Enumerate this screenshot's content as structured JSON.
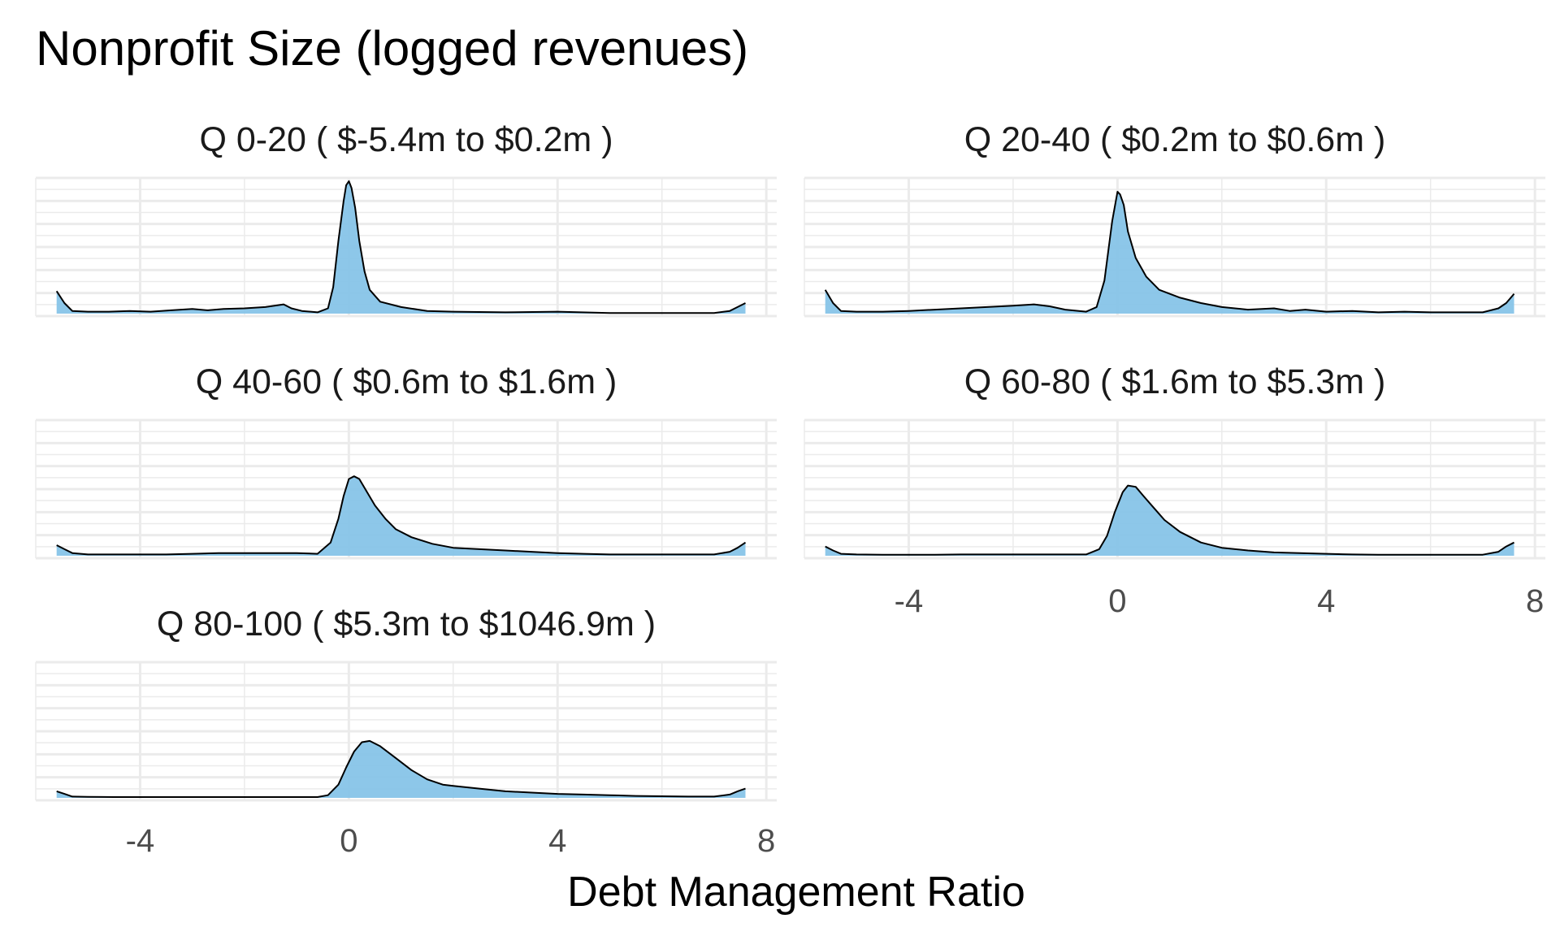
{
  "chart_data": {
    "type": "area",
    "title": "Nonprofit Size (logged revenues)",
    "xlabel": "Debt Management Ratio",
    "ylabel": "",
    "xlim": [
      -5.6,
      7.6
    ],
    "x_ticks": [
      -4,
      0,
      4,
      8
    ],
    "x_tick_labels": [
      "-4",
      "0",
      "4",
      "8"
    ],
    "grid": true,
    "fill_color": "#87c4e8",
    "line_color": "#000000",
    "grid_color": "#ebebeb",
    "panels": [
      {
        "label": "Q 0-20   ( $-5.4m to $0.2m )",
        "x": [
          -5.6,
          -5.45,
          -5.3,
          -5.0,
          -4.6,
          -4.2,
          -3.8,
          -3.4,
          -3.0,
          -2.7,
          -2.4,
          -2.0,
          -1.6,
          -1.25,
          -1.1,
          -0.9,
          -0.6,
          -0.4,
          -0.3,
          -0.2,
          -0.1,
          -0.05,
          0.0,
          0.05,
          0.12,
          0.2,
          0.3,
          0.4,
          0.6,
          1.0,
          1.5,
          2.0,
          3.0,
          4.0,
          5.0,
          6.0,
          7.0,
          7.3,
          7.45,
          7.6
        ],
        "y": [
          0.17,
          0.08,
          0.02,
          0.015,
          0.015,
          0.02,
          0.015,
          0.025,
          0.035,
          0.025,
          0.035,
          0.04,
          0.05,
          0.07,
          0.04,
          0.02,
          0.01,
          0.04,
          0.2,
          0.55,
          0.85,
          0.97,
          1.0,
          0.95,
          0.8,
          0.55,
          0.32,
          0.18,
          0.09,
          0.05,
          0.02,
          0.015,
          0.01,
          0.015,
          0.005,
          0.005,
          0.005,
          0.02,
          0.05,
          0.08
        ]
      },
      {
        "label": "Q 20-40   ( $0.2m to $0.6m )",
        "x": [
          -5.6,
          -5.45,
          -5.3,
          -5.0,
          -4.5,
          -4.0,
          -3.5,
          -3.0,
          -2.5,
          -2.0,
          -1.6,
          -1.3,
          -1.0,
          -0.6,
          -0.4,
          -0.25,
          -0.1,
          0.0,
          0.05,
          0.12,
          0.2,
          0.35,
          0.55,
          0.8,
          1.2,
          1.6,
          2.0,
          2.5,
          3.0,
          3.3,
          3.6,
          4.0,
          4.5,
          5.0,
          5.5,
          6.0,
          6.5,
          7.0,
          7.3,
          7.45,
          7.6
        ],
        "y": [
          0.18,
          0.08,
          0.02,
          0.015,
          0.015,
          0.02,
          0.03,
          0.04,
          0.05,
          0.06,
          0.07,
          0.055,
          0.03,
          0.015,
          0.05,
          0.25,
          0.7,
          0.92,
          0.9,
          0.82,
          0.62,
          0.42,
          0.28,
          0.18,
          0.12,
          0.08,
          0.05,
          0.03,
          0.04,
          0.02,
          0.03,
          0.015,
          0.02,
          0.01,
          0.015,
          0.01,
          0.01,
          0.01,
          0.04,
          0.08,
          0.15
        ]
      },
      {
        "label": "Q 40-60   ( $0.6m to $1.6m )",
        "x": [
          -5.6,
          -5.45,
          -5.3,
          -5.0,
          -4.5,
          -4.0,
          -3.5,
          -3.0,
          -2.5,
          -2.0,
          -1.5,
          -1.0,
          -0.6,
          -0.35,
          -0.2,
          -0.1,
          0.0,
          0.1,
          0.2,
          0.35,
          0.5,
          0.7,
          0.9,
          1.2,
          1.6,
          2.0,
          2.5,
          3.0,
          3.5,
          4.0,
          4.5,
          5.0,
          5.5,
          6.0,
          6.5,
          7.0,
          7.3,
          7.45,
          7.6
        ],
        "y": [
          0.08,
          0.05,
          0.02,
          0.01,
          0.01,
          0.01,
          0.01,
          0.015,
          0.02,
          0.02,
          0.02,
          0.02,
          0.015,
          0.1,
          0.28,
          0.45,
          0.58,
          0.6,
          0.58,
          0.48,
          0.38,
          0.28,
          0.2,
          0.14,
          0.09,
          0.06,
          0.05,
          0.04,
          0.03,
          0.02,
          0.015,
          0.01,
          0.01,
          0.01,
          0.01,
          0.01,
          0.03,
          0.06,
          0.1
        ]
      },
      {
        "label": "Q 60-80   ( $1.6m to $5.3m )",
        "x": [
          -5.6,
          -5.45,
          -5.3,
          -5.0,
          -4.5,
          -4.0,
          -3.5,
          -3.0,
          -2.5,
          -2.0,
          -1.5,
          -1.0,
          -0.6,
          -0.35,
          -0.2,
          -0.05,
          0.1,
          0.2,
          0.35,
          0.5,
          0.7,
          0.9,
          1.2,
          1.6,
          2.0,
          2.5,
          3.0,
          3.5,
          4.0,
          4.5,
          5.0,
          5.5,
          6.0,
          6.5,
          7.0,
          7.3,
          7.45,
          7.6
        ],
        "y": [
          0.07,
          0.04,
          0.015,
          0.01,
          0.008,
          0.008,
          0.008,
          0.01,
          0.01,
          0.01,
          0.01,
          0.01,
          0.01,
          0.05,
          0.15,
          0.33,
          0.48,
          0.53,
          0.52,
          0.45,
          0.36,
          0.27,
          0.18,
          0.1,
          0.06,
          0.04,
          0.025,
          0.02,
          0.015,
          0.01,
          0.008,
          0.008,
          0.008,
          0.008,
          0.008,
          0.03,
          0.07,
          0.1
        ]
      },
      {
        "label": "Q 80-100   ( $5.3m to $1046.9m )",
        "x": [
          -5.6,
          -5.45,
          -5.3,
          -5.0,
          -4.5,
          -4.0,
          -3.5,
          -3.0,
          -2.5,
          -2.0,
          -1.5,
          -1.0,
          -0.6,
          -0.4,
          -0.2,
          -0.05,
          0.1,
          0.25,
          0.4,
          0.6,
          0.9,
          1.2,
          1.5,
          1.8,
          2.0,
          2.5,
          3.0,
          3.5,
          4.0,
          4.5,
          5.0,
          5.5,
          6.0,
          6.5,
          7.0,
          7.3,
          7.45,
          7.6
        ],
        "y": [
          0.05,
          0.03,
          0.01,
          0.008,
          0.006,
          0.006,
          0.006,
          0.006,
          0.006,
          0.006,
          0.006,
          0.006,
          0.006,
          0.02,
          0.1,
          0.23,
          0.35,
          0.42,
          0.43,
          0.39,
          0.3,
          0.21,
          0.14,
          0.1,
          0.09,
          0.07,
          0.05,
          0.04,
          0.03,
          0.025,
          0.02,
          0.015,
          0.012,
          0.01,
          0.01,
          0.025,
          0.05,
          0.07
        ]
      }
    ]
  }
}
